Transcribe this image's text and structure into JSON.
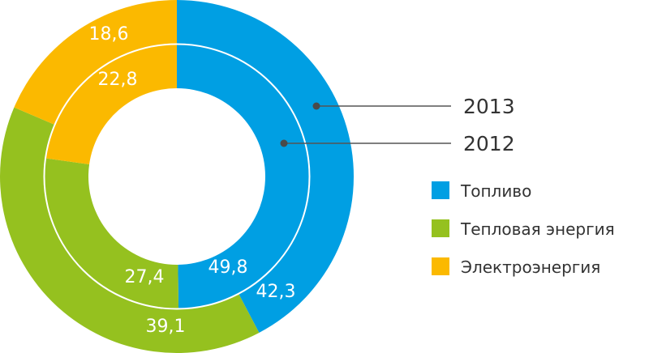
{
  "chart_data": {
    "type": "pie",
    "variant": "nested-donut",
    "categories": [
      "Топливо",
      "Тепловая энергия",
      "Электроэнергия"
    ],
    "colors": [
      "#009fe3",
      "#95c11f",
      "#fbb900"
    ],
    "series": [
      {
        "name": "2013",
        "ring": "outer",
        "values": [
          42.3,
          39.1,
          18.6
        ],
        "labels": [
          "42,3",
          "39,1",
          "18,6"
        ]
      },
      {
        "name": "2012",
        "ring": "inner",
        "values": [
          49.8,
          27.4,
          22.8
        ],
        "labels": [
          "49,8",
          "27,4",
          "22,8"
        ]
      }
    ],
    "legend": {
      "placement": "right",
      "items": [
        "Топливо",
        "Тепловая энергия",
        "Электроэнергия"
      ]
    },
    "title": ""
  }
}
